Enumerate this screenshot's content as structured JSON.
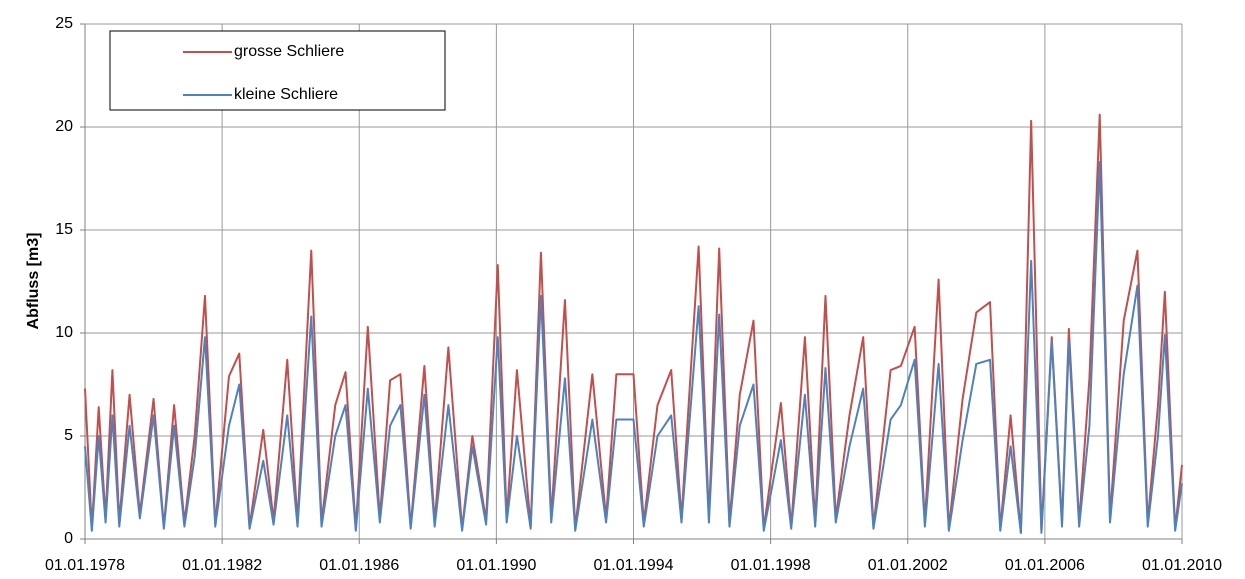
{
  "chart_data": {
    "type": "line",
    "y_label": "Abfluss [m3]",
    "x": [
      1978.0,
      1978.2,
      1978.4,
      1978.6,
      1978.8,
      1979.0,
      1979.3,
      1979.6,
      1980.0,
      1980.3,
      1980.6,
      1980.9,
      1981.2,
      1981.5,
      1981.8,
      1982.2,
      1982.5,
      1982.8,
      1983.2,
      1983.5,
      1983.9,
      1984.2,
      1984.6,
      1984.9,
      1985.3,
      1985.6,
      1985.9,
      1986.25,
      1986.6,
      1986.9,
      1987.2,
      1987.5,
      1987.9,
      1988.2,
      1988.6,
      1989.0,
      1989.3,
      1989.7,
      1990.04,
      1990.3,
      1990.6,
      1991.0,
      1991.3,
      1991.6,
      1992.0,
      1992.3,
      1992.8,
      1993.2,
      1993.5,
      1994.0,
      1994.3,
      1994.7,
      1995.1,
      1995.4,
      1995.9,
      1996.2,
      1996.5,
      1996.8,
      1997.1,
      1997.5,
      1997.8,
      1998.3,
      1998.6,
      1999.0,
      1999.3,
      1999.6,
      1999.9,
      2000.3,
      2000.7,
      2001.0,
      2001.5,
      2001.8,
      2002.2,
      2002.5,
      2002.9,
      2003.2,
      2003.6,
      2004.0,
      2004.4,
      2004.7,
      2005.0,
      2005.3,
      2005.6,
      2005.9,
      2006.2,
      2006.5,
      2006.7,
      2007.0,
      2007.3,
      2007.6,
      2007.9,
      2008.3,
      2008.7,
      2009.0,
      2009.3,
      2009.5,
      2009.8,
      2010.0
    ],
    "series": [
      {
        "name": "grosse Schliere",
        "color": "#c0504d",
        "values": [
          7.3,
          0.5,
          6.4,
          1,
          8.2,
          0.8,
          7,
          1.2,
          6.8,
          0.6,
          6.5,
          0.8,
          5,
          11.8,
          0.7,
          7.9,
          9,
          0.6,
          5.3,
          0.9,
          8.7,
          0.8,
          14,
          0.8,
          6.5,
          8.1,
          0.5,
          10.3,
          1,
          7.7,
          8,
          0.6,
          8.4,
          0.8,
          9.3,
          0.5,
          5,
          0.9,
          13.3,
          1,
          8.2,
          0.6,
          13.9,
          1,
          11.6,
          0.5,
          8,
          1,
          8,
          8,
          0.8,
          6.5,
          8.2,
          1,
          14.2,
          1,
          14.1,
          0.8,
          7,
          10.6,
          0.5,
          6.6,
          0.6,
          9.8,
          0.8,
          11.8,
          1,
          6,
          9.8,
          0.6,
          8.2,
          8.4,
          10.3,
          0.8,
          12.6,
          0.5,
          6.8,
          11,
          11.5,
          0.5,
          6,
          0.3,
          20.3,
          0.4,
          9.8,
          0.8,
          10.2,
          0.8,
          7.8,
          20.6,
          1,
          10.6,
          14,
          0.8,
          6.5,
          12,
          0.5,
          3.6
        ]
      },
      {
        "name": "kleine Schliere",
        "color": "#4f81bd",
        "values": [
          4.5,
          0.4,
          5,
          0.8,
          6,
          0.6,
          5.5,
          1,
          6,
          0.5,
          5.5,
          0.6,
          4,
          9.8,
          0.6,
          5.5,
          7.5,
          0.5,
          3.8,
          0.7,
          6,
          0.6,
          10.8,
          0.6,
          5,
          6.5,
          0.4,
          7.3,
          0.8,
          5.5,
          6.5,
          0.5,
          7,
          0.6,
          6.5,
          0.4,
          4.5,
          0.7,
          9.8,
          0.8,
          5,
          0.5,
          11.8,
          0.8,
          7.8,
          0.4,
          5.8,
          0.8,
          5.8,
          5.8,
          0.6,
          5,
          6,
          0.8,
          11.3,
          0.8,
          10.9,
          0.6,
          5.5,
          7.5,
          0.4,
          4.8,
          0.5,
          7,
          0.6,
          8.3,
          0.8,
          4.5,
          7.3,
          0.5,
          5.8,
          6.5,
          8.7,
          0.6,
          8.5,
          0.4,
          4.8,
          8.5,
          8.7,
          0.4,
          4.5,
          0.3,
          13.5,
          0.3,
          9.6,
          0.6,
          9.6,
          0.6,
          5.5,
          18.3,
          0.8,
          8,
          12.3,
          0.6,
          5,
          9.9,
          0.4,
          2.7
        ]
      }
    ],
    "xlim": [
      1978,
      2010
    ],
    "xticks": [
      {
        "value": 1978,
        "label": "01.01.1978"
      },
      {
        "value": 1982,
        "label": "01.01.1982"
      },
      {
        "value": 1986,
        "label": "01.01.1986"
      },
      {
        "value": 1990,
        "label": "01.01.1990"
      },
      {
        "value": 1994,
        "label": "01.01.1994"
      },
      {
        "value": 1998,
        "label": "01.01.1998"
      },
      {
        "value": 2002,
        "label": "01.01.2002"
      },
      {
        "value": 2006,
        "label": "01.01.2006"
      },
      {
        "value": 2010,
        "label": "01.01.2010"
      }
    ],
    "ylim": [
      0,
      25
    ],
    "yticks": [
      0,
      5,
      10,
      15,
      20,
      25
    ],
    "grid": true,
    "legend": "upper left"
  }
}
